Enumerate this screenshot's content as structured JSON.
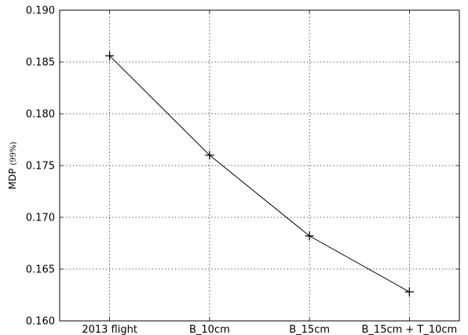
{
  "chart_data": {
    "type": "line",
    "categories": [
      "2013 flight",
      "B_10cm",
      "B_15cm",
      "B_15cm + T_10cm"
    ],
    "series": [
      {
        "values": [
          0.1856,
          0.176,
          0.1682,
          0.1628
        ],
        "color": "#000000",
        "marker": "plus"
      }
    ],
    "ylabel": "MDP",
    "ylabel_suffix": "(99%)",
    "ylim": [
      0.16,
      0.19
    ],
    "yticks": [
      "0.160",
      "0.165",
      "0.170",
      "0.175",
      "0.180",
      "0.185",
      "0.190"
    ],
    "ytick_values": [
      0.16,
      0.165,
      0.17,
      0.175,
      0.18,
      0.185,
      0.19
    ],
    "grid": true
  }
}
